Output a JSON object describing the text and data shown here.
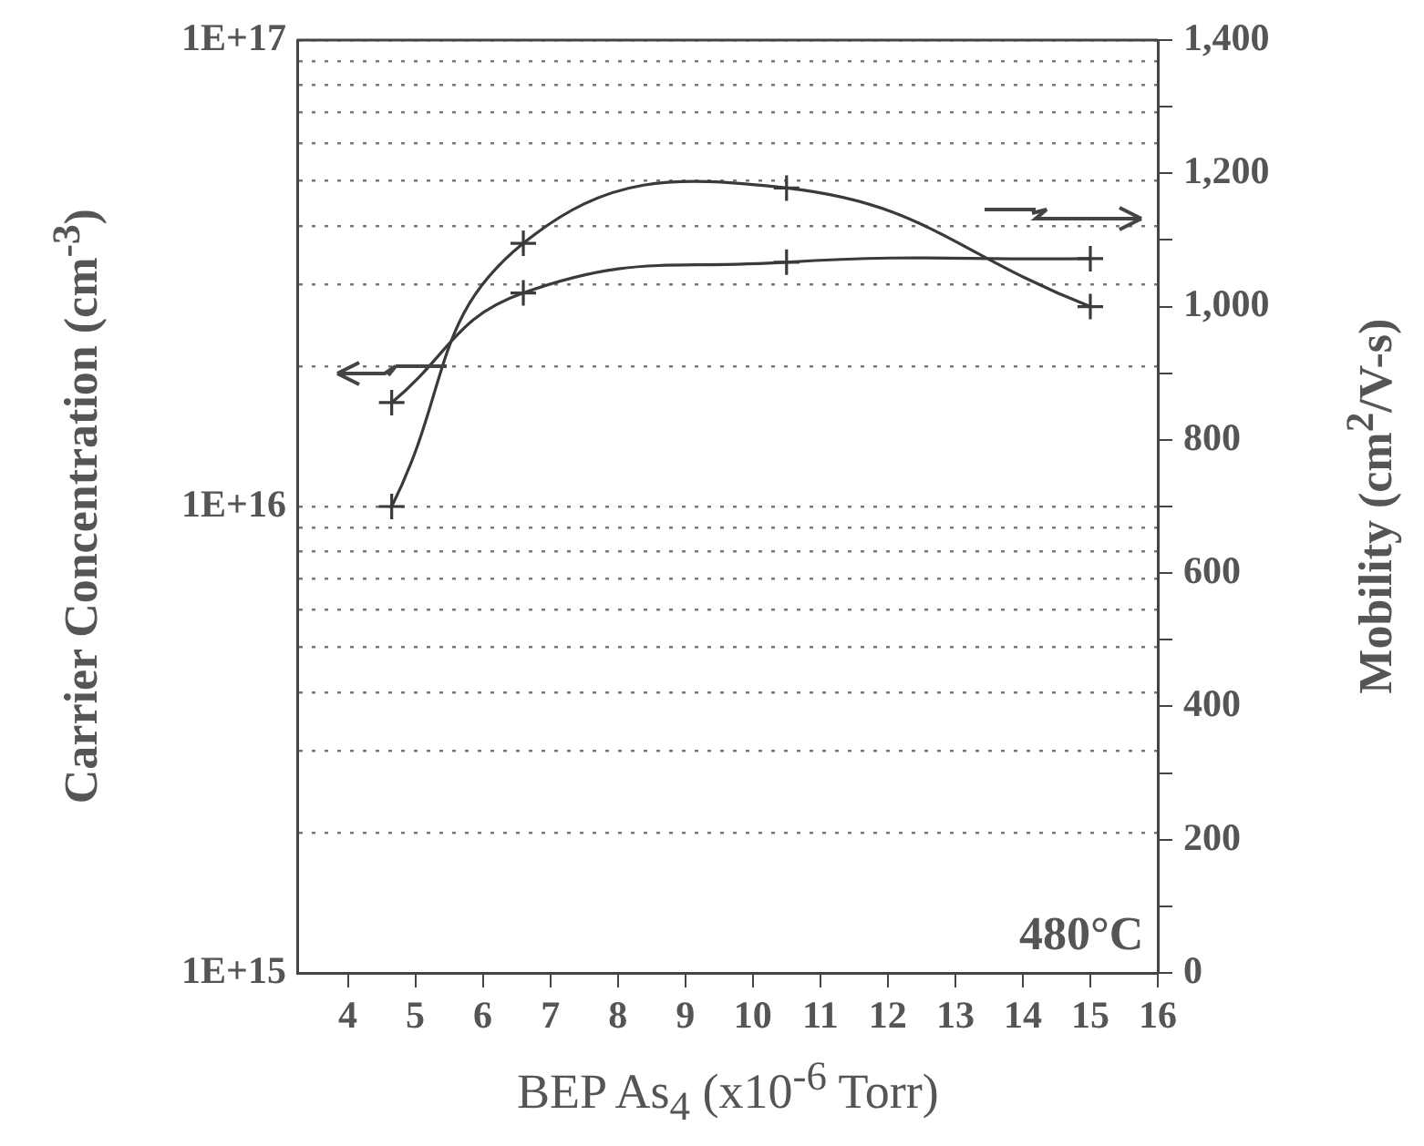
{
  "chart_data": {
    "type": "line",
    "xlabel": "BEP As$_{4}$ (x10$^{-6}$ Torr)",
    "ylabel": "Carrier Concentration (cm$^{-3}$)",
    "y2label": "Mobility (cm$^{2}$/V-s)",
    "annotations": [
      "480°C"
    ],
    "x": [
      4.65,
      6.6,
      10.5,
      15
    ],
    "series": [
      {
        "color": "#3a3a3a",
        "marker": "cross",
        "values": [
          1.67e+16,
          2.87e+16,
          3.34e+16,
          3.4e+16
        ]
      },
      {
        "color": "#3a3a3a",
        "marker": "cross",
        "axis": "y2",
        "values": [
          700,
          1095,
          1178,
          1000
        ]
      }
    ],
    "xlim": [
      3.25,
      16
    ],
    "xticks": [
      4,
      5,
      6,
      7,
      8,
      9,
      10,
      11,
      12,
      13,
      14,
      15,
      16
    ],
    "ylim": [
      1000000000000000.0,
      1e+17
    ],
    "yticks": [
      {
        "value": 1000000000000000.0,
        "label": "1E+15"
      },
      {
        "value": 2000000000000000.0,
        "label": null
      },
      {
        "value": 3000000000000000.0,
        "label": null
      },
      {
        "value": 4000000000000000.0,
        "label": null
      },
      {
        "value": 5000000000000000.0,
        "label": null
      },
      {
        "value": 6000000000000000.0,
        "label": null
      },
      {
        "value": 7000000000000000.0,
        "label": null
      },
      {
        "value": 8000000000000000.0,
        "label": null
      },
      {
        "value": 9000000000000000.0,
        "label": null
      },
      {
        "value": 1e+16,
        "label": "1E+16"
      },
      {
        "value": 2e+16,
        "label": null
      },
      {
        "value": 3e+16,
        "label": null
      },
      {
        "value": 4e+16,
        "label": null
      },
      {
        "value": 5e+16,
        "label": null
      },
      {
        "value": 6e+16,
        "label": null
      },
      {
        "value": 7e+16,
        "label": null
      },
      {
        "value": 8e+16,
        "label": null
      },
      {
        "value": 9e+16,
        "label": null
      },
      {
        "value": 1e+17,
        "label": "1E+17"
      }
    ],
    "y2lim": [
      0,
      1400
    ],
    "y2ticks": [
      0,
      {
        "value": 100,
        "label": null
      },
      200,
      {
        "value": 300,
        "label": null
      },
      400,
      {
        "value": 500,
        "label": null
      },
      600,
      {
        "value": 700,
        "label": null
      },
      800,
      {
        "value": 900,
        "label": null
      },
      {
        "value": 1000,
        "label": "1,000"
      },
      {
        "value": 1100,
        "label": null
      },
      {
        "value": 1200,
        "label": "1,200"
      },
      {
        "value": 1300,
        "label": null
      },
      {
        "value": 1400,
        "label": "1,400"
      }
    ],
    "log": "y",
    "grid": "y",
    "legend": false,
    "line_style": "solid"
  }
}
